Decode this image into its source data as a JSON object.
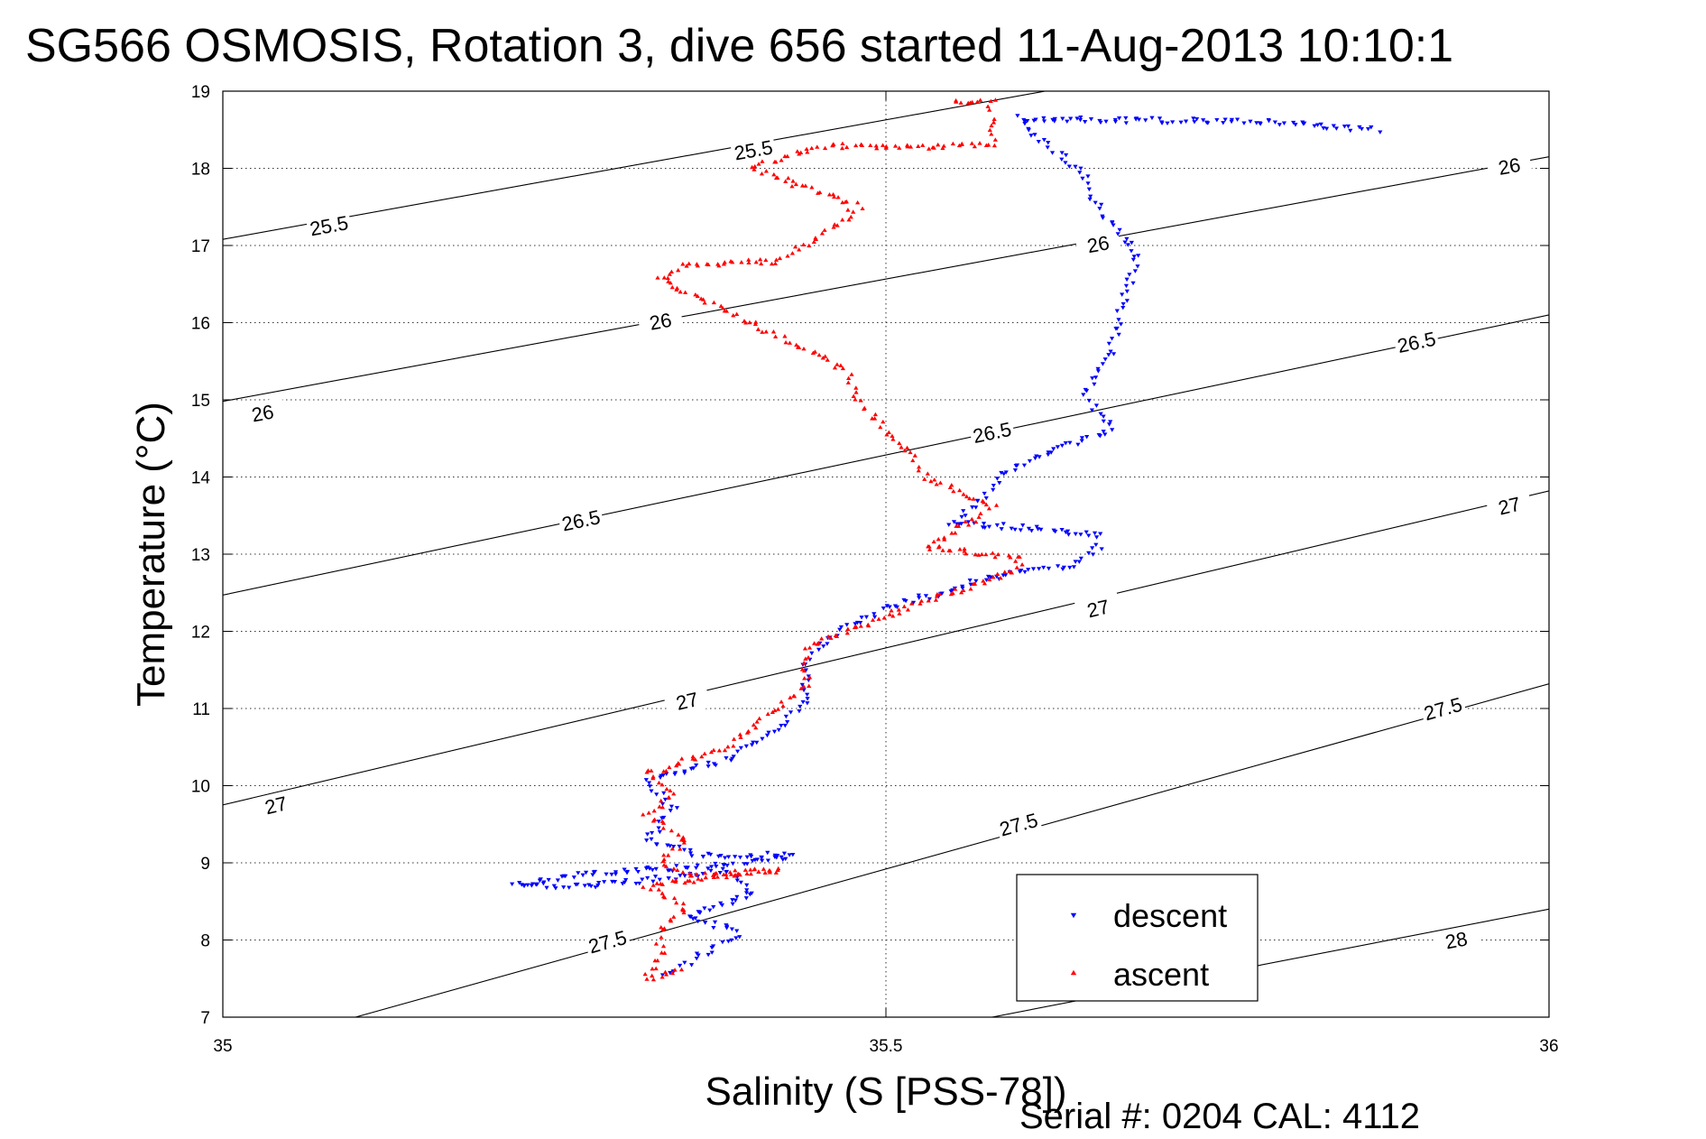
{
  "chart_data": {
    "type": "scatter",
    "title": "SG566 OSMOSIS, Rotation 3, dive 656 started 11-Aug-2013 10:10:1",
    "xlabel": "Salinity (S [PSS-78])",
    "ylabel": "Temperature (°C)",
    "xlim": [
      35,
      36
    ],
    "ylim": [
      7,
      19
    ],
    "x_ticks": [
      "35",
      "35.5",
      "36"
    ],
    "y_ticks": [
      "7",
      "8",
      "9",
      "10",
      "11",
      "12",
      "13",
      "14",
      "15",
      "16",
      "17",
      "18",
      "19"
    ],
    "grid": true,
    "legend_position": "bottom-right",
    "footer": "Serial #: 0204  CAL: 4112",
    "density_contours": [
      {
        "label": "25.5",
        "points": [
          [
            35.0,
            17.08
          ],
          [
            35.62,
            19.0
          ]
        ],
        "labels_at": [
          [
            35.08,
            17.26
          ],
          [
            35.4,
            18.24
          ]
        ]
      },
      {
        "label": "26",
        "points": [
          [
            35.0,
            14.98
          ],
          [
            36.0,
            18.15
          ]
        ],
        "labels_at": [
          [
            35.03,
            14.83
          ],
          [
            35.33,
            16.02
          ],
          [
            35.66,
            17.02
          ],
          [
            35.97,
            18.03
          ]
        ]
      },
      {
        "label": "26.5",
        "points": [
          [
            35.0,
            12.47
          ],
          [
            36.0,
            16.1
          ]
        ],
        "labels_at": [
          [
            35.27,
            13.44
          ],
          [
            35.58,
            14.58
          ],
          [
            35.9,
            15.75
          ]
        ]
      },
      {
        "label": "27",
        "points": [
          [
            35.0,
            9.75
          ],
          [
            36.0,
            13.82
          ]
        ],
        "labels_at": [
          [
            35.04,
            9.75
          ],
          [
            35.35,
            11.1
          ],
          [
            35.66,
            12.3
          ],
          [
            35.97,
            13.63
          ]
        ]
      },
      {
        "label": "27.5",
        "points": [
          [
            35.1,
            7.0
          ],
          [
            36.0,
            11.32
          ]
        ],
        "labels_at": [
          [
            35.29,
            7.98
          ],
          [
            35.6,
            9.5
          ],
          [
            35.92,
            11.0
          ]
        ]
      },
      {
        "label": "28",
        "points": [
          [
            35.58,
            7.0
          ],
          [
            36.0,
            8.4
          ]
        ],
        "labels_at": [
          [
            35.93,
            8.0
          ]
        ]
      }
    ],
    "series": [
      {
        "name": "descent",
        "color": "#0000ff",
        "marker": "triangle-down",
        "path": [
          [
            35.87,
            18.5
          ],
          [
            35.77,
            18.62
          ],
          [
            35.67,
            18.62
          ],
          [
            35.6,
            18.65
          ],
          [
            35.61,
            18.45
          ],
          [
            35.63,
            18.2
          ],
          [
            35.65,
            17.9
          ],
          [
            35.66,
            17.5
          ],
          [
            35.69,
            16.9
          ],
          [
            35.68,
            16.3
          ],
          [
            35.67,
            15.6
          ],
          [
            35.65,
            15.1
          ],
          [
            35.67,
            14.6
          ],
          [
            35.62,
            14.3
          ],
          [
            35.59,
            14.05
          ],
          [
            35.57,
            13.7
          ],
          [
            35.55,
            13.4
          ],
          [
            35.6,
            13.35
          ],
          [
            35.66,
            13.25
          ],
          [
            35.66,
            13.1
          ],
          [
            35.64,
            12.85
          ],
          [
            35.58,
            12.7
          ],
          [
            35.5,
            12.3
          ],
          [
            35.46,
            11.95
          ],
          [
            35.44,
            11.6
          ],
          [
            35.44,
            11.1
          ],
          [
            35.42,
            10.75
          ],
          [
            35.38,
            10.35
          ],
          [
            35.32,
            10.05
          ],
          [
            35.34,
            9.7
          ],
          [
            35.32,
            9.3
          ],
          [
            35.36,
            9.1
          ],
          [
            35.43,
            9.1
          ],
          [
            35.36,
            8.95
          ],
          [
            35.27,
            8.85
          ],
          [
            35.22,
            8.7
          ],
          [
            35.28,
            8.7
          ],
          [
            35.38,
            8.9
          ],
          [
            35.4,
            8.6
          ],
          [
            35.35,
            8.3
          ],
          [
            35.39,
            8.1
          ],
          [
            35.36,
            7.8
          ],
          [
            35.33,
            7.5
          ]
        ]
      },
      {
        "name": "ascent",
        "color": "#ff0000",
        "marker": "triangle-up",
        "path": [
          [
            35.55,
            18.85
          ],
          [
            35.58,
            18.85
          ],
          [
            35.58,
            18.6
          ],
          [
            35.58,
            18.3
          ],
          [
            35.5,
            18.27
          ],
          [
            35.47,
            18.3
          ],
          [
            35.43,
            18.2
          ],
          [
            35.4,
            18.0
          ],
          [
            35.48,
            17.5
          ],
          [
            35.45,
            17.1
          ],
          [
            35.42,
            16.8
          ],
          [
            35.35,
            16.75
          ],
          [
            35.33,
            16.55
          ],
          [
            35.47,
            15.4
          ],
          [
            35.48,
            15.0
          ],
          [
            35.5,
            14.6
          ],
          [
            35.52,
            14.3
          ],
          [
            35.53,
            14.0
          ],
          [
            35.56,
            13.8
          ],
          [
            35.58,
            13.6
          ],
          [
            35.55,
            13.3
          ],
          [
            35.53,
            13.1
          ],
          [
            35.6,
            12.95
          ],
          [
            35.6,
            12.8
          ],
          [
            35.55,
            12.5
          ],
          [
            35.5,
            12.2
          ],
          [
            35.44,
            11.8
          ],
          [
            35.44,
            11.3
          ],
          [
            35.41,
            10.9
          ],
          [
            35.38,
            10.5
          ],
          [
            35.32,
            10.15
          ],
          [
            35.34,
            9.9
          ],
          [
            35.32,
            9.6
          ],
          [
            35.35,
            9.3
          ],
          [
            35.33,
            9.0
          ],
          [
            35.35,
            8.85
          ],
          [
            35.42,
            8.9
          ],
          [
            35.32,
            8.7
          ],
          [
            35.35,
            8.4
          ],
          [
            35.33,
            8.1
          ],
          [
            35.33,
            7.8
          ],
          [
            35.32,
            7.5
          ],
          [
            35.35,
            7.6
          ]
        ]
      }
    ]
  }
}
